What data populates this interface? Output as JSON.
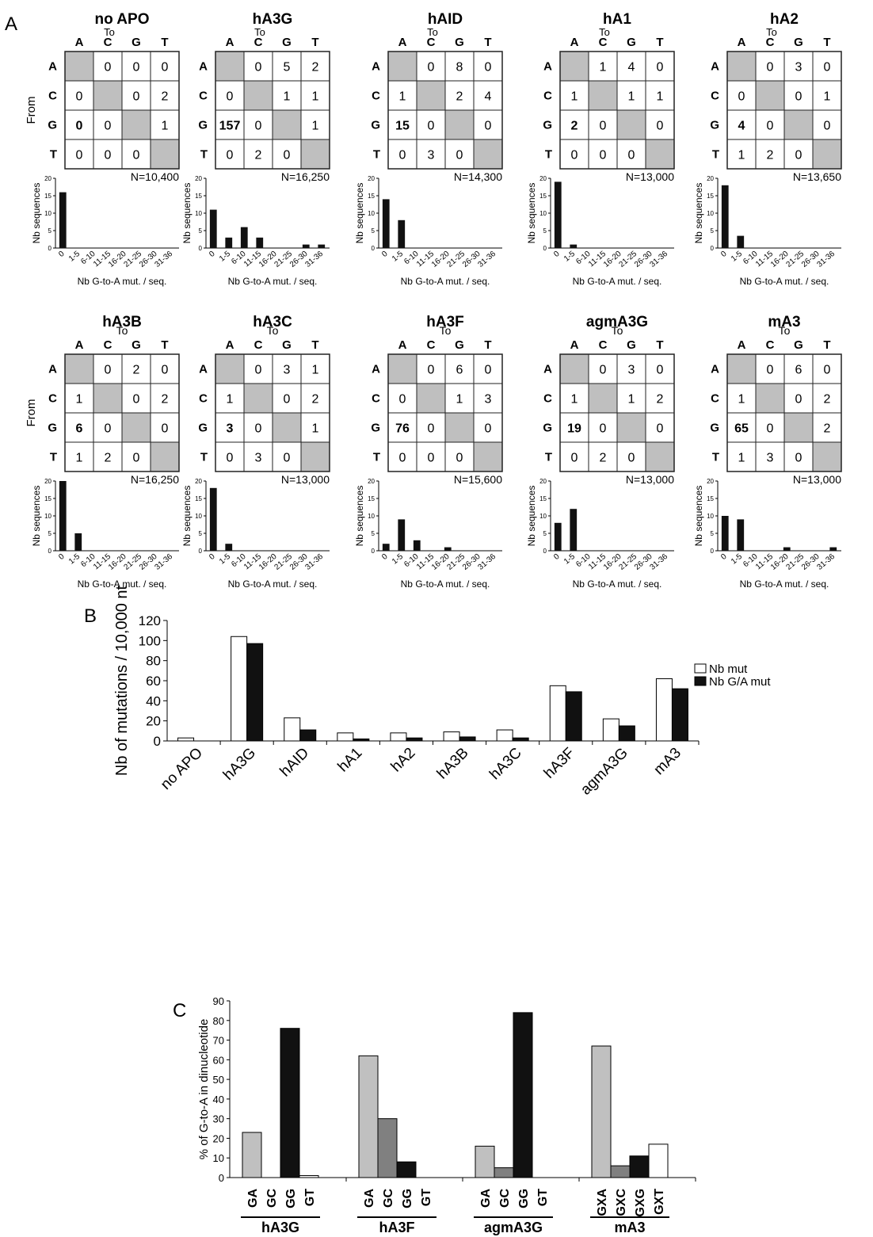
{
  "panel_labels": [
    "A",
    "B",
    "C"
  ],
  "matrix_common": {
    "from_label": "From",
    "to_label": "To",
    "bases": [
      "A",
      "C",
      "G",
      "T"
    ],
    "hist_ylabel": "Nb sequences",
    "hist_xlabel": "Nb G-to-A mut. / seq.",
    "hist_bins": [
      "0",
      "1-5",
      "6-10",
      "11-15",
      "16-20",
      "21-25",
      "26-30",
      "31-36"
    ],
    "hist_yticks": [
      0,
      5,
      10,
      15,
      20
    ]
  },
  "chart_data": [
    {
      "type": "table",
      "panel": "A",
      "description_source": "mutation matrices (rows From A,C,G,T; cols To A,C,G,T; null = diagonal)",
      "matrices": [
        {
          "title": "no APO",
          "n": "N=10,400",
          "cells": [
            [
              null,
              0,
              0,
              0
            ],
            [
              0,
              null,
              0,
              2
            ],
            [
              0,
              0,
              null,
              1
            ],
            [
              0,
              0,
              0,
              null
            ]
          ],
          "hist": [
            16,
            0,
            0,
            0,
            0,
            0,
            0,
            0
          ]
        },
        {
          "title": "hA3G",
          "n": "N=16,250",
          "cells": [
            [
              null,
              0,
              5,
              2
            ],
            [
              0,
              null,
              1,
              1
            ],
            [
              157,
              0,
              null,
              1
            ],
            [
              0,
              2,
              0,
              null
            ]
          ],
          "hist": [
            11,
            3,
            6,
            3,
            0,
            0,
            1,
            1
          ]
        },
        {
          "title": "hAID",
          "n": "N=14,300",
          "cells": [
            [
              null,
              0,
              8,
              0
            ],
            [
              1,
              null,
              2,
              4
            ],
            [
              15,
              0,
              null,
              0
            ],
            [
              0,
              3,
              0,
              null
            ]
          ],
          "hist": [
            14,
            8,
            0,
            0,
            0,
            0,
            0,
            0
          ]
        },
        {
          "title": "hA1",
          "n": "N=13,000",
          "cells": [
            [
              null,
              1,
              4,
              0
            ],
            [
              1,
              null,
              1,
              1
            ],
            [
              2,
              0,
              null,
              0
            ],
            [
              0,
              0,
              0,
              null
            ]
          ],
          "hist": [
            19,
            1,
            0,
            0,
            0,
            0,
            0,
            0
          ]
        },
        {
          "title": "hA2",
          "n": "N=13,650",
          "cells": [
            [
              null,
              0,
              3,
              0
            ],
            [
              0,
              null,
              0,
              1
            ],
            [
              4,
              0,
              null,
              0
            ],
            [
              1,
              2,
              0,
              null
            ]
          ],
          "hist": [
            18,
            3.5,
            0,
            0,
            0,
            0,
            0,
            0
          ]
        },
        {
          "title": "hA3B",
          "n": "N=16,250",
          "cells": [
            [
              null,
              0,
              2,
              0
            ],
            [
              1,
              null,
              0,
              2
            ],
            [
              6,
              0,
              null,
              0
            ],
            [
              1,
              2,
              0,
              null
            ]
          ],
          "hist": [
            20,
            5,
            0,
            0,
            0,
            0,
            0,
            0
          ]
        },
        {
          "title": "hA3C",
          "n": "N=13,000",
          "cells": [
            [
              null,
              0,
              3,
              1
            ],
            [
              1,
              null,
              0,
              2
            ],
            [
              3,
              0,
              null,
              1
            ],
            [
              0,
              3,
              0,
              null
            ]
          ],
          "hist": [
            18,
            2,
            0,
            0,
            0,
            0,
            0,
            0
          ]
        },
        {
          "title": "hA3F",
          "n": "N=15,600",
          "cells": [
            [
              null,
              0,
              6,
              0
            ],
            [
              0,
              null,
              1,
              3
            ],
            [
              76,
              0,
              null,
              0
            ],
            [
              0,
              0,
              0,
              null
            ]
          ],
          "hist": [
            2,
            9,
            3,
            0,
            1,
            0,
            0,
            0
          ]
        },
        {
          "title": "agmA3G",
          "n": "N=13,000",
          "cells": [
            [
              null,
              0,
              3,
              0
            ],
            [
              1,
              null,
              1,
              2
            ],
            [
              19,
              0,
              null,
              0
            ],
            [
              0,
              2,
              0,
              null
            ]
          ],
          "hist": [
            8,
            12,
            0,
            0,
            0,
            0,
            0,
            0
          ]
        },
        {
          "title": "mA3",
          "n": "N=13,000",
          "cells": [
            [
              null,
              0,
              6,
              0
            ],
            [
              1,
              null,
              0,
              2
            ],
            [
              65,
              0,
              null,
              2
            ],
            [
              1,
              3,
              0,
              null
            ]
          ],
          "hist": [
            10,
            9,
            0,
            0,
            1,
            0,
            0,
            1
          ]
        }
      ]
    },
    {
      "type": "bar",
      "panel": "B",
      "categories": [
        "no APO",
        "hA3G",
        "hAID",
        "hA1",
        "hA2",
        "hA3B",
        "hA3C",
        "hA3F",
        "agmA3G",
        "mA3"
      ],
      "series": [
        {
          "name": "Nb mut",
          "color": "#ffffff",
          "values": [
            3,
            104,
            23,
            8,
            8,
            9,
            11,
            55,
            22,
            62
          ]
        },
        {
          "name": "Nb G/A mut",
          "color": "#111111",
          "values": [
            0,
            97,
            11,
            2,
            3,
            4,
            3,
            49,
            15,
            52
          ]
        }
      ],
      "ylabel": "Nb of mutations / 10,000 nt",
      "ylim": [
        0,
        120
      ],
      "yticks": [
        0,
        20,
        40,
        60,
        80,
        100,
        120
      ],
      "legend": "right"
    },
    {
      "type": "bar",
      "panel": "C",
      "ylabel": "% of G-to-A in dinucleotide",
      "ylim": [
        0,
        90
      ],
      "yticks": [
        0,
        10,
        20,
        30,
        40,
        50,
        60,
        70,
        80,
        90
      ],
      "groups": [
        {
          "name": "hA3G",
          "bars": [
            {
              "label": "GA",
              "value": 23,
              "color": "#c0c0c0"
            },
            {
              "label": "GC",
              "value": 0,
              "color": "#808080"
            },
            {
              "label": "GG",
              "value": 76,
              "color": "#111111"
            },
            {
              "label": "GT",
              "value": 1,
              "color": "#ffffff"
            }
          ]
        },
        {
          "name": "hA3F",
          "bars": [
            {
              "label": "GA",
              "value": 62,
              "color": "#c0c0c0"
            },
            {
              "label": "GC",
              "value": 30,
              "color": "#808080"
            },
            {
              "label": "GG",
              "value": 8,
              "color": "#111111"
            },
            {
              "label": "GT",
              "value": 0,
              "color": "#ffffff"
            }
          ]
        },
        {
          "name": "agmA3G",
          "bars": [
            {
              "label": "GA",
              "value": 16,
              "color": "#c0c0c0"
            },
            {
              "label": "GC",
              "value": 5,
              "color": "#808080"
            },
            {
              "label": "GG",
              "value": 84,
              "color": "#111111"
            },
            {
              "label": "GT",
              "value": 0,
              "color": "#ffffff"
            }
          ]
        },
        {
          "name": "mA3",
          "bars": [
            {
              "label": "GXA",
              "value": 67,
              "color": "#c0c0c0"
            },
            {
              "label": "GXC",
              "value": 6,
              "color": "#808080"
            },
            {
              "label": "GXG",
              "value": 11,
              "color": "#111111"
            },
            {
              "label": "GXT",
              "value": 17,
              "color": "#ffffff"
            }
          ]
        }
      ]
    }
  ]
}
